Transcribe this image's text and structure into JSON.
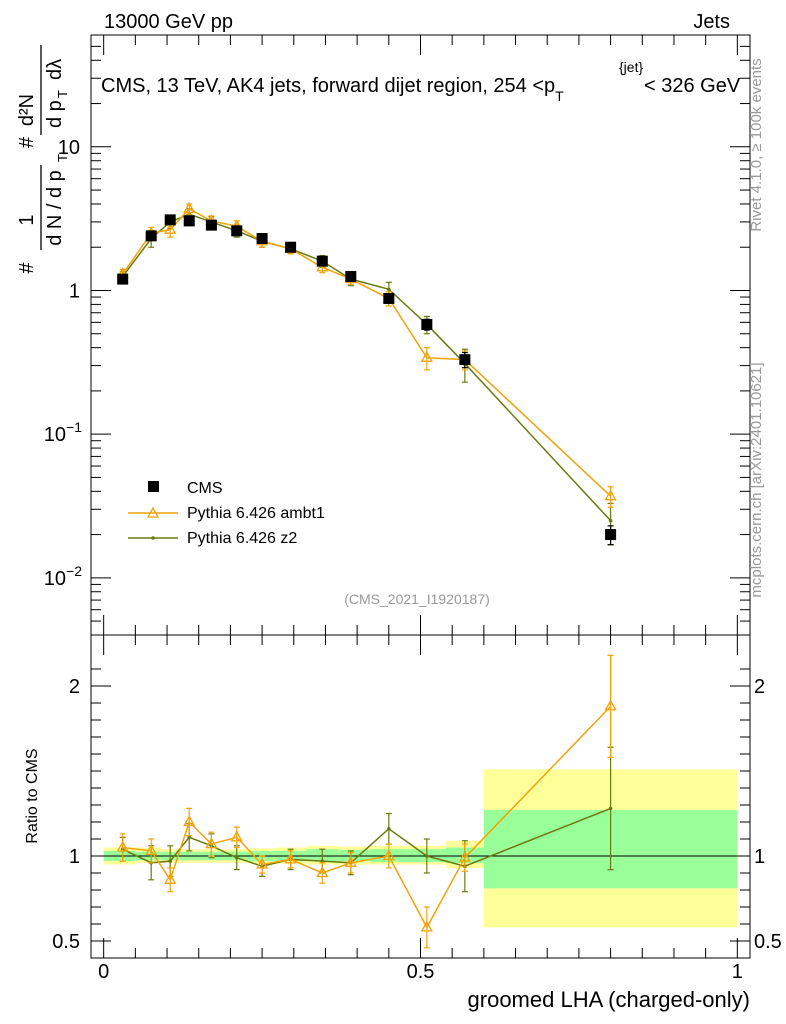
{
  "header": {
    "left": "13000 GeV pp",
    "right": "Jets",
    "title_main": "CMS, 13 TeV, AK4 jets, forward dijet region, 254 <p",
    "title_sub": "T",
    "title_sup": "{jet}",
    "title_tail": "< 326 GeV"
  },
  "side": {
    "rivet": "Rivet 4.1.0, ≥ 100k events",
    "mcplots": "mcplots.cern.ch [arXiv:2401.10621]"
  },
  "analysis_id": "(CMS_2021_I1920187)",
  "xlabel": "groomed LHA (charged-only)",
  "ylabel_ratio": "Ratio to CMS",
  "legend": [
    {
      "name": "CMS",
      "color": "#000000"
    },
    {
      "name": "Pythia 6.426 ambt1",
      "color": "#f0a30a"
    },
    {
      "name": "Pythia 6.426 z2",
      "color": "#6b7a0e"
    }
  ],
  "chart_data": [
    {
      "type": "line",
      "yscale": "log",
      "title": "CMS, 13 TeV, AK4 jets, forward dijet region, 254 <p_T^{jet}< 326 GeV",
      "xlabel": "groomed LHA (charged-only)",
      "ylabel": "1/(dN/dp_T) d²N/(dp_T dλ)",
      "xlim": [
        -0.02,
        1.02
      ],
      "ylim": [
        0.004,
        60
      ],
      "yticks": [
        {
          "v": 0.01,
          "base": "10",
          "exp": "−2"
        },
        {
          "v": 0.1,
          "base": "10",
          "exp": "−1"
        },
        {
          "v": 1,
          "base": "1",
          "exp": ""
        },
        {
          "v": 10,
          "base": "10",
          "exp": ""
        }
      ],
      "series": [
        {
          "name": "CMS",
          "x": [
            0.03,
            0.075,
            0.105,
            0.135,
            0.17,
            0.21,
            0.25,
            0.295,
            0.345,
            0.39,
            0.45,
            0.51,
            0.57,
            0.8
          ],
          "y": [
            1.2,
            2.4,
            3.1,
            3.05,
            2.85,
            2.6,
            2.3,
            2.0,
            1.6,
            1.25,
            0.88,
            0.58,
            0.33,
            0.02
          ],
          "err": [
            0.08,
            0.15,
            0.2,
            0.2,
            0.15,
            0.13,
            0.12,
            0.1,
            0.09,
            0.07,
            0.06,
            0.05,
            0.04,
            0.003
          ]
        },
        {
          "name": "Pythia 6.426 ambt1",
          "x": [
            0.03,
            0.075,
            0.105,
            0.135,
            0.17,
            0.21,
            0.25,
            0.295,
            0.345,
            0.39,
            0.45,
            0.51,
            0.57,
            0.8
          ],
          "y": [
            1.3,
            2.5,
            2.65,
            3.7,
            3.05,
            2.8,
            2.2,
            1.95,
            1.45,
            1.2,
            0.88,
            0.34,
            0.33,
            0.037
          ],
          "err": [
            0.1,
            0.25,
            0.3,
            0.3,
            0.25,
            0.25,
            0.2,
            0.15,
            0.12,
            0.1,
            0.1,
            0.06,
            0.05,
            0.006
          ]
        },
        {
          "name": "Pythia 6.426 z2",
          "x": [
            0.03,
            0.075,
            0.105,
            0.135,
            0.17,
            0.21,
            0.25,
            0.295,
            0.345,
            0.39,
            0.45,
            0.51,
            0.57,
            0.8
          ],
          "y": [
            1.25,
            2.3,
            3.0,
            3.4,
            3.0,
            2.6,
            2.2,
            1.95,
            1.6,
            1.2,
            1.02,
            0.58,
            0.31,
            0.025
          ],
          "err": [
            0.1,
            0.3,
            0.3,
            0.3,
            0.25,
            0.25,
            0.2,
            0.15,
            0.15,
            0.12,
            0.12,
            0.08,
            0.08,
            0.008
          ]
        }
      ]
    },
    {
      "type": "line",
      "title": "ratio",
      "xlabel": "groomed LHA (charged-only)",
      "ylabel": "Ratio to CMS",
      "xlim": [
        -0.02,
        1.02
      ],
      "ylim": [
        0.4,
        2.3
      ],
      "yticks": [
        0.5,
        1,
        2
      ],
      "xticks": [
        {
          "v": 0,
          "label": "0"
        },
        {
          "v": 0.5,
          "label": "0.5"
        },
        {
          "v": 1,
          "label": "1"
        }
      ],
      "bands": [
        {
          "xlo": 0.0,
          "xhi": 0.05,
          "yellow": [
            0.95,
            1.05
          ],
          "green": [
            0.97,
            1.03
          ]
        },
        {
          "xlo": 0.05,
          "xhi": 0.09,
          "yellow": [
            0.96,
            1.05
          ],
          "green": [
            0.975,
            1.025
          ]
        },
        {
          "xlo": 0.09,
          "xhi": 0.12,
          "yellow": [
            0.96,
            1.04
          ],
          "green": [
            0.975,
            1.025
          ]
        },
        {
          "xlo": 0.12,
          "xhi": 0.15,
          "yellow": [
            0.96,
            1.04
          ],
          "green": [
            0.975,
            1.025
          ]
        },
        {
          "xlo": 0.15,
          "xhi": 0.19,
          "yellow": [
            0.96,
            1.04
          ],
          "green": [
            0.975,
            1.025
          ]
        },
        {
          "xlo": 0.19,
          "xhi": 0.23,
          "yellow": [
            0.96,
            1.04
          ],
          "green": [
            0.975,
            1.025
          ]
        },
        {
          "xlo": 0.23,
          "xhi": 0.27,
          "yellow": [
            0.955,
            1.045
          ],
          "green": [
            0.97,
            1.03
          ]
        },
        {
          "xlo": 0.27,
          "xhi": 0.32,
          "yellow": [
            0.955,
            1.05
          ],
          "green": [
            0.97,
            1.03
          ]
        },
        {
          "xlo": 0.32,
          "xhi": 0.37,
          "yellow": [
            0.95,
            1.06
          ],
          "green": [
            0.97,
            1.04
          ]
        },
        {
          "xlo": 0.37,
          "xhi": 0.42,
          "yellow": [
            0.95,
            1.055
          ],
          "green": [
            0.97,
            1.035
          ]
        },
        {
          "xlo": 0.42,
          "xhi": 0.48,
          "yellow": [
            0.95,
            1.06
          ],
          "green": [
            0.965,
            1.04
          ]
        },
        {
          "xlo": 0.48,
          "xhi": 0.54,
          "yellow": [
            0.95,
            1.06
          ],
          "green": [
            0.965,
            1.04
          ]
        },
        {
          "xlo": 0.54,
          "xhi": 0.6,
          "yellow": [
            0.93,
            1.09
          ],
          "green": [
            0.96,
            1.05
          ]
        },
        {
          "xlo": 0.6,
          "xhi": 1.0,
          "yellow": [
            0.58,
            1.51
          ],
          "green": [
            0.81,
            1.27
          ]
        }
      ],
      "series": [
        {
          "name": "Pythia 6.426 ambt1",
          "x": [
            0.03,
            0.075,
            0.105,
            0.135,
            0.17,
            0.21,
            0.25,
            0.295,
            0.345,
            0.39,
            0.45,
            0.51,
            0.57,
            0.8
          ],
          "y": [
            1.05,
            1.03,
            0.86,
            1.2,
            1.07,
            1.11,
            0.95,
            0.98,
            0.9,
            0.96,
            1.0,
            0.58,
            0.99,
            1.88
          ],
          "err": [
            0.08,
            0.07,
            0.07,
            0.08,
            0.07,
            0.06,
            0.05,
            0.05,
            0.06,
            0.06,
            0.07,
            0.12,
            0.08,
            0.3
          ]
        },
        {
          "name": "Pythia 6.426 z2",
          "x": [
            0.03,
            0.075,
            0.105,
            0.135,
            0.17,
            0.21,
            0.25,
            0.295,
            0.345,
            0.39,
            0.45,
            0.51,
            0.57,
            0.8
          ],
          "y": [
            1.04,
            0.96,
            0.97,
            1.11,
            1.06,
            0.99,
            0.94,
            0.98,
            0.97,
            0.96,
            1.16,
            1.0,
            0.94,
            1.28
          ],
          "err": [
            0.07,
            0.1,
            0.09,
            0.08,
            0.07,
            0.07,
            0.06,
            0.06,
            0.07,
            0.07,
            0.09,
            0.1,
            0.15,
            0.36
          ]
        }
      ]
    }
  ]
}
